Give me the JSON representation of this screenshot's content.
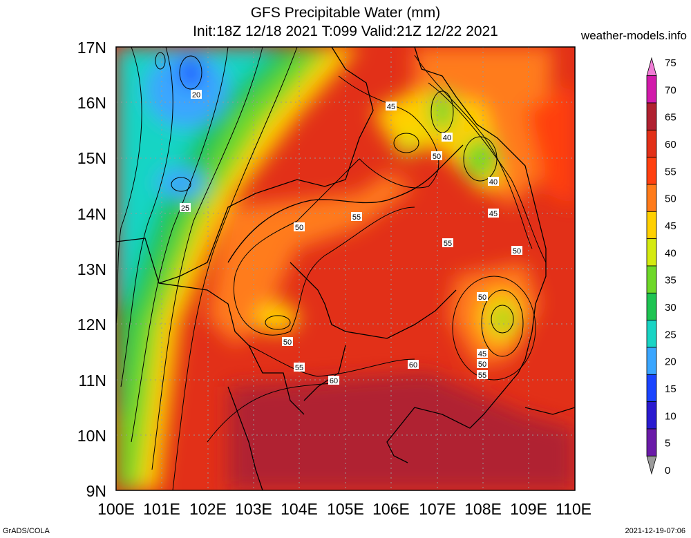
{
  "title_line1": "GFS Precipitable Water (mm)",
  "title_line2": "Init:18Z 12/18 2021 T:099 Valid:21Z 12/22 2021",
  "site": "weather-models.info",
  "footer_left": "GrADS/COLA",
  "footer_right": "2021-12-19-07:06",
  "map": {
    "lon_ticks": [
      "100E",
      "101E",
      "102E",
      "103E",
      "104E",
      "105E",
      "106E",
      "107E",
      "108E",
      "109E",
      "110E"
    ],
    "lat_ticks": [
      "17N",
      "16N",
      "15N",
      "14N",
      "13N",
      "12N",
      "11N",
      "10N",
      "9N"
    ],
    "contour_labels": [
      "20",
      "25",
      "50",
      "55",
      "50",
      "55",
      "60",
      "45",
      "40",
      "50",
      "40",
      "45",
      "50",
      "55",
      "50",
      "45",
      "50",
      "55",
      "60"
    ]
  },
  "colorbar": {
    "levels": [
      "75",
      "70",
      "65",
      "60",
      "55",
      "50",
      "45",
      "40",
      "35",
      "30",
      "25",
      "20",
      "15",
      "10",
      "5",
      "0"
    ],
    "colors": [
      "#f07cd6",
      "#d21aab",
      "#b02030",
      "#e23018",
      "#ff4010",
      "#ff7b1a",
      "#ffd000",
      "#d4ea10",
      "#6ed828",
      "#1ec452",
      "#19d4c4",
      "#3aa6ff",
      "#1a44ff",
      "#2a1ad0",
      "#6a1aa8",
      "#9a9a9a"
    ]
  }
}
